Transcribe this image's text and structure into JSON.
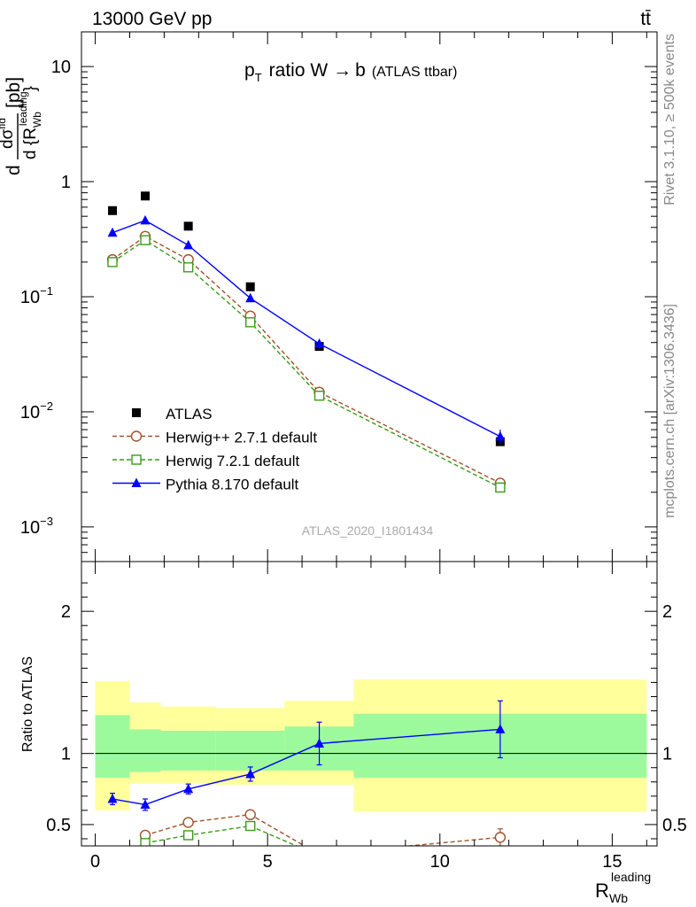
{
  "header": {
    "left": "13000 GeV pp",
    "right": "tt̄"
  },
  "side_labels": {
    "rivet": "Rivet 3.1.10, ≥ 500k events",
    "mcplots": "mcplots.cern.ch [arXiv:1306.3436]"
  },
  "chart_data": [
    {
      "type": "scatter",
      "panel": "main",
      "title": "p_T ratio W → b",
      "title_main": "ratio W",
      "title_arrow": "→",
      "title_b": "b",
      "title_sub": "(ATLAS ttbar)",
      "analysis_label": "ATLAS_2020_I1801434",
      "ylabel": "dσ/d{R_Wb^leading} [pb]",
      "y_scale": "log",
      "ylim": [
        0.0005,
        20
      ],
      "xlim": [
        -0.4,
        16.3
      ],
      "grid": false,
      "legend_position": "lower-left",
      "y_ticks": [
        {
          "value": 10,
          "label": "10"
        },
        {
          "value": 1,
          "label": "1"
        },
        {
          "value": 0.1,
          "label": "10",
          "exp": "−1"
        },
        {
          "value": 0.01,
          "label": "10",
          "exp": "−2"
        },
        {
          "value": 0.001,
          "label": "10",
          "exp": "−3"
        }
      ],
      "series": [
        {
          "name": "ATLAS",
          "marker": "square-filled",
          "color": "#000000",
          "x": [
            0.5,
            1.45,
            2.7,
            4.5,
            6.5,
            11.75
          ],
          "y": [
            0.56,
            0.75,
            0.41,
            0.122,
            0.037,
            0.0055
          ],
          "yerr": [
            0,
            0,
            0,
            0,
            0.002,
            0.0004
          ]
        },
        {
          "name": "Herwig++ 2.7.1 default",
          "marker": "circle-open",
          "line": "dashed",
          "color": "#a0522d",
          "x": [
            0.5,
            1.45,
            2.7,
            4.5,
            6.5,
            11.75
          ],
          "y": [
            0.21,
            0.335,
            0.21,
            0.068,
            0.0148,
            0.0024
          ]
        },
        {
          "name": "Herwig 7.2.1 default",
          "marker": "square-open",
          "line": "dashed",
          "color": "#3b9b1a",
          "x": [
            0.5,
            1.45,
            2.7,
            4.5,
            6.5,
            11.75
          ],
          "y": [
            0.2,
            0.31,
            0.18,
            0.06,
            0.0138,
            0.0022
          ]
        },
        {
          "name": "Pythia 8.170 default",
          "marker": "triangle-filled",
          "line": "solid",
          "color": "#0000ff",
          "x": [
            0.5,
            1.45,
            2.7,
            4.5,
            6.5,
            11.75
          ],
          "y": [
            0.36,
            0.46,
            0.28,
            0.097,
            0.039,
            0.0061
          ],
          "yerr": [
            0.01,
            0.012,
            0.008,
            0.005,
            0.004,
            0.0009
          ]
        }
      ]
    },
    {
      "type": "scatter",
      "panel": "ratio",
      "ylabel": "Ratio to ATLAS",
      "xlabel": "R_Wb^leading",
      "ylim": [
        0.35,
        2.35
      ],
      "xlim": [
        -0.4,
        16.3
      ],
      "x_ticks": [
        0,
        5,
        10,
        15
      ],
      "y_ticks": [
        0.5,
        1,
        2
      ],
      "bands": {
        "bins": [
          [
            0,
            1
          ],
          [
            1,
            1.9
          ],
          [
            1.9,
            3.5
          ],
          [
            3.5,
            5.5
          ],
          [
            5.5,
            7.5
          ],
          [
            7.5,
            16
          ]
        ],
        "inner_low": [
          0.83,
          0.87,
          0.88,
          0.88,
          0.88,
          0.83
        ],
        "inner_high": [
          1.27,
          1.17,
          1.16,
          1.16,
          1.19,
          1.28
        ],
        "outer_low": [
          0.6,
          0.79,
          0.79,
          0.78,
          0.78,
          0.59
        ],
        "outer_high": [
          1.51,
          1.36,
          1.33,
          1.32,
          1.37,
          1.52
        ],
        "inner_color": "#9cfa9c",
        "outer_color": "#ffff9c"
      },
      "series": [
        {
          "name": "Herwig++ 2.7.1 default",
          "color": "#a0522d",
          "marker": "circle-open",
          "line": "dashed",
          "x": [
            1.45,
            2.7,
            4.5,
            6.5,
            11.75
          ],
          "y": [
            0.425,
            0.515,
            0.57,
            0.29,
            0.41
          ],
          "yerr": [
            0,
            0,
            0.02,
            0,
            0.06
          ]
        },
        {
          "name": "Herwig 7.2.1 default",
          "color": "#3b9b1a",
          "marker": "square-open",
          "line": "dashed",
          "x": [
            1.45,
            2.7,
            4.5,
            6.5
          ],
          "y": [
            0.37,
            0.425,
            0.49,
            0.28
          ]
        },
        {
          "name": "Pythia 8.170 default",
          "color": "#0000ff",
          "marker": "triangle-filled",
          "line": "solid",
          "x": [
            0.5,
            1.45,
            2.7,
            4.5,
            6.5,
            11.75
          ],
          "y": [
            0.68,
            0.64,
            0.75,
            0.855,
            1.07,
            1.17
          ],
          "yerr": [
            0.04,
            0.04,
            0.035,
            0.05,
            0.15,
            0.2
          ]
        }
      ]
    }
  ]
}
